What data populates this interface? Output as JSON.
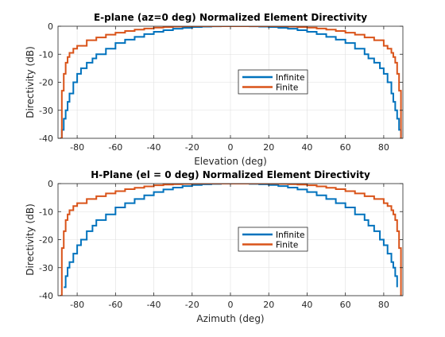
{
  "window": {
    "background": "#ffffff"
  },
  "colors": {
    "infinite": "#0072BD",
    "finite": "#D95319",
    "axis": "#262626",
    "grid": "#dfdfdf"
  },
  "chart_data": [
    {
      "type": "line",
      "title": "E-plane (az=0 deg) Normalized Element Directivity",
      "xlabel": "Elevation (deg)",
      "ylabel": "Directivity (dB)",
      "xlim": [
        -90,
        90
      ],
      "ylim": [
        -40,
        0
      ],
      "xticks": [
        -80,
        -60,
        -40,
        -20,
        0,
        20,
        40,
        60,
        80
      ],
      "yticks": [
        -40,
        -30,
        -20,
        -10,
        0
      ],
      "xtick_labels": [
        "-80",
        "-60",
        "-40",
        "-20",
        "0",
        "20",
        "40",
        "60",
        "80"
      ],
      "ytick_labels": [
        "-40",
        "-30",
        "-20",
        "-10",
        "0"
      ],
      "grid": true,
      "legend_position": "right-center",
      "series": [
        {
          "name": "Infinite",
          "color": "#0072BD",
          "x": [
            -89,
            -88,
            -87,
            -86,
            -85,
            -84,
            -82,
            -80,
            -78,
            -75,
            -72,
            -70,
            -65,
            -60,
            -55,
            -50,
            -45,
            -40,
            -35,
            -30,
            -25,
            -20,
            -15,
            -10,
            -5,
            0,
            5,
            10,
            15,
            20,
            25,
            30,
            35,
            40,
            45,
            50,
            55,
            60,
            65,
            70,
            72,
            75,
            78,
            80,
            82,
            84,
            85,
            86,
            87,
            88,
            89
          ],
          "y": [
            -40,
            -37,
            -33,
            -30,
            -27,
            -24,
            -20,
            -17,
            -15,
            -13,
            -11.5,
            -10,
            -8,
            -6,
            -4.8,
            -3.8,
            -2.8,
            -2,
            -1.4,
            -0.9,
            -0.55,
            -0.3,
            -0.15,
            -0.05,
            0,
            0,
            0,
            -0.05,
            -0.15,
            -0.3,
            -0.55,
            -0.9,
            -1.4,
            -2,
            -2.8,
            -3.8,
            -4.8,
            -6,
            -8,
            -10,
            -11.5,
            -13,
            -15,
            -17,
            -20,
            -24,
            -27,
            -30,
            -33,
            -37,
            -40
          ]
        },
        {
          "name": "Finite",
          "color": "#D95319",
          "x": [
            -89,
            -88,
            -87,
            -86,
            -85,
            -84,
            -82,
            -80,
            -75,
            -70,
            -65,
            -60,
            -55,
            -50,
            -45,
            -40,
            -35,
            -30,
            -25,
            -20,
            -15,
            -10,
            -5,
            0,
            5,
            10,
            15,
            20,
            25,
            30,
            35,
            40,
            45,
            50,
            55,
            60,
            65,
            70,
            75,
            80,
            82,
            84,
            85,
            86,
            87,
            88,
            89
          ],
          "y": [
            -40,
            -23,
            -17,
            -13,
            -11,
            -9.5,
            -8,
            -7,
            -5,
            -4,
            -3,
            -2.3,
            -1.7,
            -1.2,
            -0.8,
            -0.5,
            -0.3,
            -0.15,
            -0.05,
            0,
            0,
            0,
            0,
            0,
            0,
            0,
            0,
            0,
            -0.05,
            -0.15,
            -0.3,
            -0.5,
            -0.8,
            -1.2,
            -1.7,
            -2.3,
            -3,
            -4,
            -5,
            -7,
            -8,
            -9.5,
            -11,
            -13,
            -17,
            -23,
            -40
          ]
        }
      ]
    },
    {
      "type": "line",
      "title": "H-Plane (el = 0 deg) Normalized Element Directivity",
      "xlabel": "Azimuth (deg)",
      "ylabel": "Directivity (dB)",
      "xlim": [
        -90,
        90
      ],
      "ylim": [
        -40,
        0
      ],
      "xticks": [
        -80,
        -60,
        -40,
        -20,
        0,
        20,
        40,
        60,
        80
      ],
      "yticks": [
        -40,
        -30,
        -20,
        -10,
        0
      ],
      "xtick_labels": [
        "-80",
        "-60",
        "-40",
        "-20",
        "0",
        "20",
        "40",
        "60",
        "80"
      ],
      "ytick_labels": [
        "-40",
        "-30",
        "-20",
        "-10",
        "0"
      ],
      "grid": true,
      "legend_position": "right-center",
      "series": [
        {
          "name": "Infinite",
          "color": "#0072BD",
          "x": [
            -87,
            -86,
            -85,
            -84,
            -82,
            -80,
            -78,
            -75,
            -72,
            -70,
            -65,
            -60,
            -55,
            -50,
            -45,
            -40,
            -35,
            -30,
            -25,
            -20,
            -15,
            -10,
            -5,
            0,
            5,
            10,
            15,
            20,
            25,
            30,
            35,
            40,
            45,
            50,
            55,
            60,
            65,
            70,
            72,
            75,
            78,
            80,
            82,
            84,
            85,
            86,
            87
          ],
          "y": [
            -37,
            -33,
            -30,
            -28,
            -25,
            -22,
            -20,
            -17,
            -15,
            -13,
            -11,
            -8.5,
            -7,
            -5.5,
            -4.2,
            -3,
            -2.1,
            -1.4,
            -0.9,
            -0.5,
            -0.25,
            -0.1,
            0,
            0,
            0,
            -0.1,
            -0.25,
            -0.5,
            -0.9,
            -1.4,
            -2.1,
            -3,
            -4.2,
            -5.5,
            -7,
            -8.5,
            -11,
            -13,
            -15,
            -17,
            -20,
            -22,
            -25,
            -28,
            -30,
            -33,
            -37
          ]
        },
        {
          "name": "Finite",
          "color": "#D95319",
          "x": [
            -89,
            -88,
            -87,
            -86,
            -85,
            -84,
            -82,
            -80,
            -75,
            -70,
            -65,
            -60,
            -55,
            -50,
            -45,
            -40,
            -35,
            -30,
            -25,
            -20,
            -15,
            -10,
            -5,
            0,
            5,
            10,
            15,
            20,
            25,
            30,
            35,
            40,
            45,
            50,
            55,
            60,
            65,
            70,
            75,
            80,
            82,
            84,
            85,
            86,
            87,
            88,
            89
          ],
          "y": [
            -40,
            -23,
            -17,
            -13,
            -11,
            -9.5,
            -8,
            -7,
            -5.5,
            -4.5,
            -3.5,
            -2.7,
            -2,
            -1.5,
            -1,
            -0.6,
            -0.35,
            -0.2,
            -0.1,
            -0.03,
            0,
            0,
            0,
            0,
            0,
            0,
            0,
            -0.03,
            -0.1,
            -0.2,
            -0.35,
            -0.6,
            -1,
            -1.5,
            -2,
            -2.7,
            -3.5,
            -4.5,
            -5.5,
            -7,
            -8,
            -9.5,
            -11,
            -13,
            -17,
            -23,
            -40
          ]
        }
      ]
    }
  ]
}
